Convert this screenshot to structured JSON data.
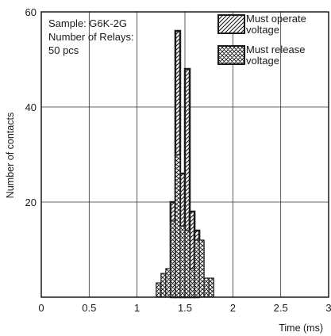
{
  "chart_data": {
    "type": "bar",
    "xlabel": "Time (ms)",
    "ylabel": "Number of contacts",
    "xlim": [
      0,
      3
    ],
    "ylim": [
      0,
      60
    ],
    "x_ticks": [
      "0",
      "0.5",
      "1",
      "1.5",
      "2",
      "2.5",
      "3"
    ],
    "y_ticks": [
      "20",
      "40",
      "60"
    ],
    "grid": true,
    "annotation": [
      "Sample: G6K-2G",
      "Number of Relays:",
      "50 pcs"
    ],
    "legend_position": "top-right",
    "series": [
      {
        "name": "Must operate voltage",
        "pattern": "diagonal-hatch",
        "bins": [
          {
            "x0": 1.35,
            "x1": 1.4,
            "value": 20
          },
          {
            "x0": 1.4,
            "x1": 1.45,
            "value": 56
          },
          {
            "x0": 1.45,
            "x1": 1.5,
            "value": 26
          },
          {
            "x0": 1.5,
            "x1": 1.55,
            "value": 48
          },
          {
            "x0": 1.55,
            "x1": 1.6,
            "value": 18
          },
          {
            "x0": 1.6,
            "x1": 1.65,
            "value": 14
          }
        ]
      },
      {
        "name": "Must release voltage",
        "pattern": "cross-hatch",
        "bins": [
          {
            "x0": 1.2,
            "x1": 1.25,
            "value": 3
          },
          {
            "x0": 1.25,
            "x1": 1.3,
            "value": 5
          },
          {
            "x0": 1.3,
            "x1": 1.35,
            "value": 6
          },
          {
            "x0": 1.35,
            "x1": 1.4,
            "value": 16
          },
          {
            "x0": 1.4,
            "x1": 1.45,
            "value": 30
          },
          {
            "x0": 1.45,
            "x1": 1.5,
            "value": 15
          },
          {
            "x0": 1.5,
            "x1": 1.55,
            "value": 14
          },
          {
            "x0": 1.55,
            "x1": 1.6,
            "value": 6
          },
          {
            "x0": 1.6,
            "x1": 1.65,
            "value": 12
          },
          {
            "x0": 1.65,
            "x1": 1.7,
            "value": 12
          },
          {
            "x0": 1.7,
            "x1": 1.75,
            "value": 4
          },
          {
            "x0": 1.75,
            "x1": 1.8,
            "value": 4
          }
        ]
      }
    ]
  },
  "legend": {
    "operate_line1": "Must operate",
    "operate_line2": "voltage",
    "release_line1": "Must release",
    "release_line2": "voltage"
  }
}
